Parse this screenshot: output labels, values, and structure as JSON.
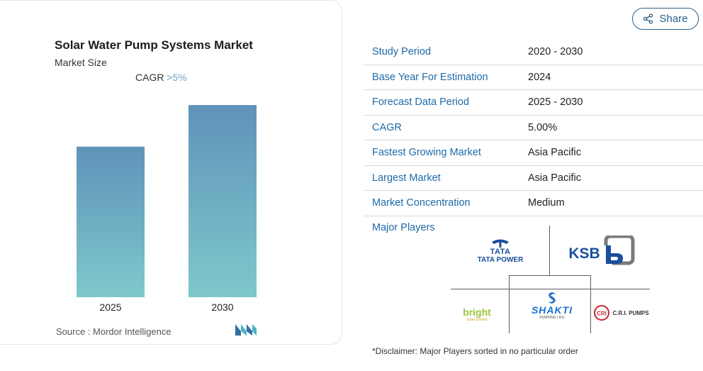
{
  "chart": {
    "title": "Solar Water Pump Systems Market",
    "subtitle": "Market Size",
    "cagr_label": "CAGR",
    "cagr_value": ">5%",
    "source": "Source :  Mordor Intelligence",
    "colors": {
      "bar_top": "#5f93ba",
      "bar_bottom": "#7ec8cb",
      "accent": "#6aa6c9"
    }
  },
  "chart_data": {
    "type": "bar",
    "categories": [
      "2025",
      "2030"
    ],
    "values": [
      100,
      127.6
    ],
    "title": "Solar Water Pump Systems Market",
    "ylabel": "",
    "xlabel": "",
    "ylim": [
      0,
      130
    ],
    "grid": false,
    "legend": "none"
  },
  "share": {
    "label": "Share",
    "icon": "share-icon"
  },
  "info": {
    "rows": [
      {
        "key": "Study Period",
        "value": "2020 - 2030"
      },
      {
        "key": "Base Year For Estimation",
        "value": "2024"
      },
      {
        "key": "Forecast Data Period",
        "value": "2025 - 2030"
      },
      {
        "key": "CAGR",
        "value": "5.00%"
      },
      {
        "key": "Fastest Growing Market",
        "value": "Asia Pacific"
      },
      {
        "key": "Largest Market",
        "value": "Asia Pacific"
      },
      {
        "key": "Market Concentration",
        "value": "Medium"
      }
    ],
    "major_players_label": "Major Players"
  },
  "players": {
    "tata_top": "TATA",
    "tata_bottom": "TATA POWER",
    "ksb": "KSB",
    "bright": "bright",
    "bright_sub": "Solar Limited",
    "shakti": "SHAKTI",
    "shakti_sub": "PUMPING LIFE",
    "cri": "C.R.I. PUMPS"
  },
  "disclaimer": "*Disclaimer: Major Players sorted in no particular order"
}
